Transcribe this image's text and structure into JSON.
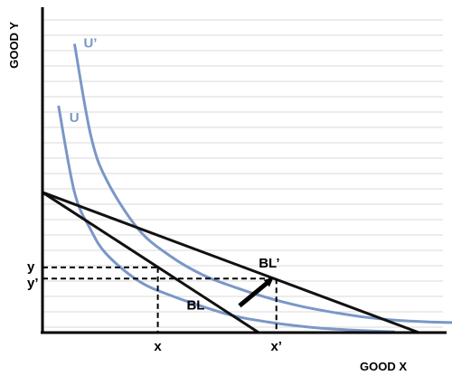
{
  "chart_data": {
    "type": "line",
    "title": "",
    "xlabel": "GOOD X",
    "ylabel": "GOOD Y",
    "grid": true,
    "colors": {
      "indifference": "#7a97c7",
      "budget": "#111111",
      "grid": "#d9d9d9",
      "guide": "#000000"
    },
    "indifference_curves": [
      {
        "label": "U",
        "points": [
          [
            1,
            55
          ],
          [
            2,
            34
          ],
          [
            3,
            25
          ],
          [
            4,
            19
          ],
          [
            6,
            12.5
          ],
          [
            8,
            9
          ],
          [
            10,
            6.3
          ],
          [
            12,
            4
          ],
          [
            14,
            2.6
          ],
          [
            16,
            1.6
          ],
          [
            18,
            0.9
          ],
          [
            20,
            0.5
          ],
          [
            22,
            0.2
          ]
        ]
      },
      {
        "label": "U’",
        "points": [
          [
            2,
            70
          ],
          [
            3,
            48
          ],
          [
            4,
            37
          ],
          [
            6,
            25
          ],
          [
            8,
            18.5
          ],
          [
            10,
            14
          ],
          [
            12,
            11
          ],
          [
            14,
            8.5
          ],
          [
            16,
            6.5
          ],
          [
            18,
            5
          ],
          [
            20,
            3.8
          ],
          [
            22,
            3
          ],
          [
            24,
            2.6
          ],
          [
            26,
            2.4
          ]
        ]
      }
    ],
    "budget_lines": [
      {
        "label": "BL",
        "points": [
          [
            0,
            34
          ],
          [
            13.5,
            0
          ]
        ]
      },
      {
        "label": "BL’",
        "points": [
          [
            0,
            34
          ],
          [
            23.5,
            0
          ]
        ]
      }
    ],
    "guides": {
      "x_label": "x",
      "x_value": 7.2,
      "x_prime_label": "x’",
      "x_prime_value": 14.6,
      "y_label": "y",
      "y_value": 15.8,
      "y_prime_label": "y’",
      "y_prime_value": 13.1
    },
    "arrow": {
      "from": [
        12.3,
        6.5
      ],
      "to": [
        14.2,
        12.6
      ]
    },
    "xlim": [
      0,
      25
    ],
    "ylim": [
      0,
      78
    ]
  }
}
